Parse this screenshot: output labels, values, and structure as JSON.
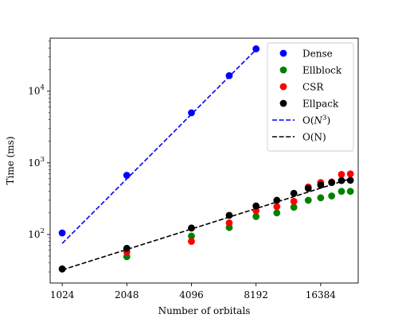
{
  "chart_data": {
    "type": "scatter",
    "title": "",
    "xlabel": "Number of orbitals",
    "ylabel": "Time (ms)",
    "x_scale": "log2",
    "y_scale": "log10",
    "xlim": [
      900,
      24500
    ],
    "ylim": [
      21,
      55000
    ],
    "x_ticks": [
      1024,
      2048,
      4096,
      8192,
      16384
    ],
    "x_tick_labels": [
      "1024",
      "2048",
      "4096",
      "8192",
      "16384"
    ],
    "y_ticks": [
      100,
      1000,
      10000
    ],
    "y_tick_labels": [
      {
        "base": "10",
        "exp": "2"
      },
      {
        "base": "10",
        "exp": "3"
      },
      {
        "base": "10",
        "exp": "4"
      }
    ],
    "grid": false,
    "legend_position": "top-right",
    "series": [
      {
        "name": "Dense",
        "color": "#0000ff",
        "marker": "circle",
        "x": [
          1024,
          2048,
          4096,
          6144,
          8192
        ],
        "y": [
          105,
          670,
          5000,
          16500,
          39000
        ]
      },
      {
        "name": "Ellblock",
        "color": "#008000",
        "marker": "circle",
        "x": [
          1024,
          2048,
          4096,
          6144,
          8192,
          10240,
          12288,
          14336,
          16384,
          18432,
          20480,
          22528
        ],
        "y": [
          33,
          49,
          95,
          125,
          178,
          200,
          240,
          300,
          325,
          345,
          400,
          400
        ]
      },
      {
        "name": "CSR",
        "color": "#ff0000",
        "marker": "circle",
        "x": [
          1024,
          2048,
          4096,
          6144,
          8192,
          10240,
          12288,
          14336,
          16384,
          18432,
          20480,
          22528
        ],
        "y": [
          33,
          57,
          80,
          145,
          215,
          245,
          290,
          460,
          530,
          540,
          690,
          700
        ]
      },
      {
        "name": "Ellpack",
        "color": "#000000",
        "marker": "circle",
        "x": [
          1024,
          2048,
          4096,
          6144,
          8192,
          10240,
          12288,
          14336,
          16384,
          18432,
          20480,
          22528
        ],
        "y": [
          33,
          64,
          123,
          185,
          250,
          300,
          375,
          440,
          490,
          530,
          565,
          570
        ]
      }
    ],
    "fit_lines": [
      {
        "name": "O(N^3)",
        "label_base": "O(",
        "label_var": "N",
        "label_exp": "3",
        "label_tail": ")",
        "color": "#0000ff",
        "dash": "dashed",
        "x": [
          1024,
          8192
        ],
        "y": [
          75,
          38000
        ]
      },
      {
        "name": "O(N)",
        "label_base": "O(N)",
        "label_var": "",
        "label_exp": "",
        "label_tail": "",
        "color": "#000000",
        "dash": "dashed",
        "x": [
          1024,
          22528
        ],
        "y": [
          32,
          600
        ]
      }
    ]
  }
}
